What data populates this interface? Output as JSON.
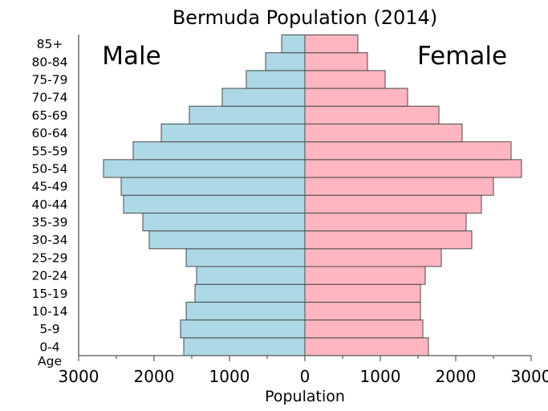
{
  "chart_data": {
    "type": "bar",
    "orientation": "horizontal",
    "subtype": "population-pyramid",
    "title": "Bermuda Population (2014)",
    "xlabel": "Population",
    "ylabel": "Age",
    "xlim": [
      -3000,
      3000
    ],
    "xticks": [
      -3000,
      -2000,
      -1000,
      0,
      1000,
      2000,
      3000
    ],
    "xtick_labels": [
      "3000",
      "2000",
      "1000",
      "0",
      "1000",
      "2000",
      "3000"
    ],
    "grid": false,
    "categories": [
      "0-4",
      "5-9",
      "10-14",
      "15-19",
      "20-24",
      "25-29",
      "30-34",
      "35-39",
      "40-44",
      "45-49",
      "50-54",
      "55-59",
      "60-64",
      "65-69",
      "70-74",
      "75-79",
      "80-84",
      "85+"
    ],
    "series": [
      {
        "name": "Male",
        "color": "#add8e6",
        "side": "left",
        "values": [
          1606,
          1649,
          1574,
          1457,
          1436,
          1574,
          2064,
          2149,
          2404,
          2436,
          2670,
          2277,
          1904,
          1532,
          1096,
          777,
          521,
          308
        ]
      },
      {
        "name": "Female",
        "color": "#ffb6c1",
        "side": "right",
        "values": [
          1638,
          1564,
          1532,
          1532,
          1596,
          1809,
          2213,
          2138,
          2340,
          2500,
          2872,
          2734,
          2085,
          1777,
          1362,
          1064,
          830,
          702
        ]
      }
    ],
    "annotations": {
      "male_label": "Male",
      "female_label": "Female"
    },
    "edge_color": "#4a4a4a",
    "axis_color": "#555555"
  }
}
